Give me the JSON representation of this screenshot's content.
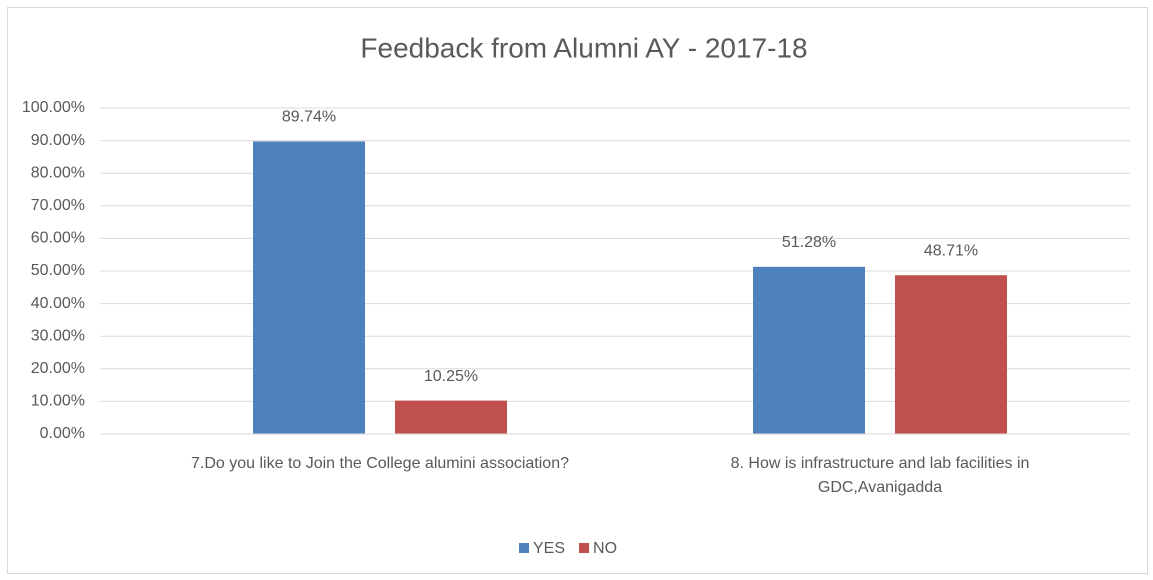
{
  "chart_data": {
    "type": "bar",
    "title": "Feedback from Alumni AY - 2017-18",
    "categories": [
      "7.Do you like to Join the College alumini association?",
      "8. How is infrastructure and lab facilities in GDC,Avanigadda"
    ],
    "series": [
      {
        "name": "YES",
        "color": "#4f81bd",
        "values": [
          89.74,
          51.28
        ],
        "value_labels": [
          "89.74%",
          "51.28%"
        ]
      },
      {
        "name": "NO",
        "color": "#c0504d",
        "values": [
          10.25,
          48.71
        ],
        "value_labels": [
          "10.25%",
          "48.71%"
        ]
      }
    ],
    "ylim": [
      0,
      100
    ],
    "yticks": [
      {
        "value": 0,
        "label": "0.00%"
      },
      {
        "value": 10,
        "label": "10.00%"
      },
      {
        "value": 20,
        "label": "20.00%"
      },
      {
        "value": 30,
        "label": "30.00%"
      },
      {
        "value": 40,
        "label": "40.00%"
      },
      {
        "value": 50,
        "label": "50.00%"
      },
      {
        "value": 60,
        "label": "60.00%"
      },
      {
        "value": 70,
        "label": "70.00%"
      },
      {
        "value": 80,
        "label": "80.00%"
      },
      {
        "value": 90,
        "label": "90.00%"
      },
      {
        "value": 100,
        "label": "100.00%"
      }
    ],
    "grid": true,
    "legend": "bottom"
  }
}
